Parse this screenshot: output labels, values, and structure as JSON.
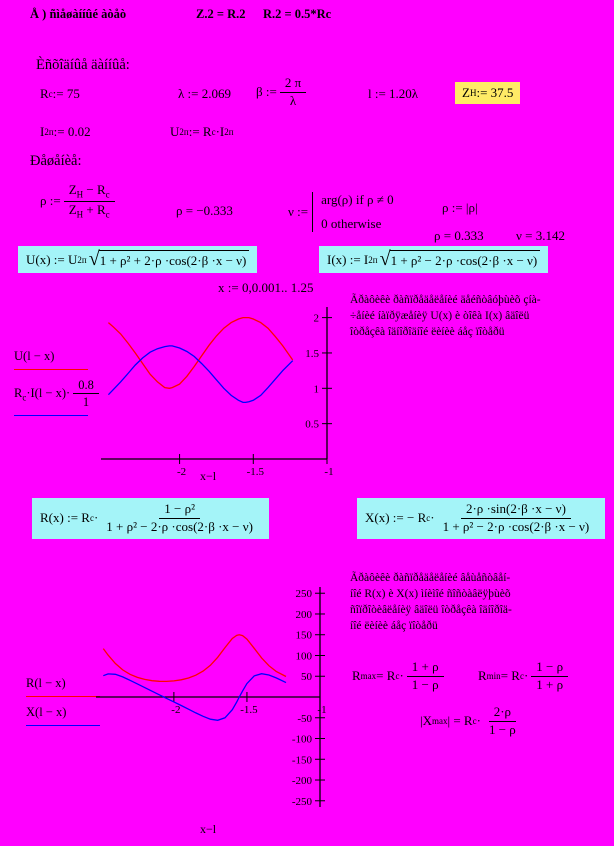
{
  "colors": {
    "background": "#FF00FF",
    "region_highlight": "#A4F4F8",
    "value_highlight": "#FFEB66",
    "trace_red": "#FF0000",
    "trace_blue": "#0000FF"
  },
  "header": {
    "label": "Å )  ñìåøàííûé àòåò",
    "eq1": "Z.2 = R.2",
    "eq2": "R.2 = 0.5*Rc"
  },
  "titles": {
    "given": "Èñõîäíûå äàííûå:",
    "solution": "Ðåøåíèå:"
  },
  "given": {
    "rc": [
      [
        "t",
        "R"
      ],
      [
        "b",
        "c"
      ],
      [
        "t",
        " := 75"
      ]
    ],
    "lambda": [
      [
        "t",
        "λ := 2.069"
      ]
    ],
    "beta": [
      [
        "t",
        "β := "
      ],
      [
        "F",
        [
          [
            "t",
            "2 π"
          ]
        ],
        [
          [
            "t",
            "λ"
          ]
        ]
      ]
    ],
    "length": [
      [
        "t",
        "l := 1.20λ"
      ]
    ],
    "zh": [
      [
        "t",
        "Z"
      ],
      [
        "b",
        "H"
      ],
      [
        "t",
        " := 37.5"
      ]
    ],
    "i2p": [
      [
        "t",
        "I"
      ],
      [
        "b",
        "2п"
      ],
      [
        "t",
        " := 0.02"
      ]
    ],
    "u2p": [
      [
        "t",
        "U"
      ],
      [
        "b",
        "2п"
      ],
      [
        "t",
        " := R"
      ],
      [
        "b",
        "c"
      ],
      [
        "t",
        "·I"
      ],
      [
        "b",
        "2п"
      ]
    ]
  },
  "solution": {
    "p_def": [
      [
        "t",
        "ρ := "
      ],
      [
        "F",
        [
          [
            "t",
            "Z"
          ],
          [
            "b",
            "H"
          ],
          [
            "t",
            " −  R"
          ],
          [
            "b",
            "c"
          ]
        ],
        [
          [
            "t",
            "Z"
          ],
          [
            "b",
            "H"
          ],
          [
            "t",
            " +  R"
          ],
          [
            "b",
            "c"
          ]
        ]
      ]
    ],
    "p_val1": "ρ  = −0.333",
    "v_label": [
      [
        "t",
        "ν := "
      ]
    ],
    "v_line1": "arg(ρ)   if  ρ ≠ 0",
    "v_line2": "0   otherwise",
    "p_abs": "ρ := |ρ|",
    "p_val2": "ρ  = 0.333",
    "v_val": "ν  = 3.142",
    "range": "x := 0,0.001.. 1.25"
  },
  "formulas": {
    "u_box": [
      [
        "t",
        "U(x) := U"
      ],
      [
        "b",
        "2п"
      ],
      [
        "r",
        "1 + ρ²  + 2·ρ ·cos(2·β ·x −  ν)"
      ]
    ],
    "i_box": [
      [
        "t",
        "I(x) := I"
      ],
      [
        "b",
        "2п"
      ],
      [
        "r",
        "1 + ρ²  −  2·ρ ·cos(2·β ·x −  ν)"
      ]
    ],
    "r_box": [
      [
        "t",
        "R(x) := R"
      ],
      [
        "b",
        "c"
      ],
      [
        "t",
        "·"
      ],
      [
        "F",
        [
          [
            "t",
            "1 −  ρ²"
          ]
        ],
        [
          [
            "t",
            "1 + ρ²  −  2·ρ ·cos(2·β ·x −  ν)"
          ]
        ]
      ]
    ],
    "x_box": [
      [
        "t",
        "X(x) := − R"
      ],
      [
        "b",
        "c"
      ],
      [
        "t",
        "·"
      ],
      [
        "F",
        [
          [
            "t",
            "2·ρ ·sin(2·β ·x −  ν)"
          ]
        ],
        [
          [
            "t",
            "1 + ρ²  −  2·ρ ·cos(2·β ·x −  ν)"
          ]
        ]
      ]
    ],
    "rmax": [
      [
        "t",
        "R"
      ],
      [
        "b",
        "max"
      ],
      [
        "t",
        " = R"
      ],
      [
        "b",
        "c"
      ],
      [
        "t",
        "·"
      ],
      [
        "F",
        [
          [
            "t",
            "1 +  ρ"
          ]
        ],
        [
          [
            "t",
            "1 −  ρ"
          ]
        ]
      ]
    ],
    "rmin": [
      [
        "t",
        "R"
      ],
      [
        "b",
        "min"
      ],
      [
        "t",
        " = R"
      ],
      [
        "b",
        "c"
      ],
      [
        "t",
        "·"
      ],
      [
        "F",
        [
          [
            "t",
            "1 −  ρ"
          ]
        ],
        [
          [
            "t",
            "1 +  ρ"
          ]
        ]
      ]
    ],
    "xmax": [
      [
        "t",
        "|X"
      ],
      [
        "b",
        "max"
      ],
      [
        "t",
        "| = R"
      ],
      [
        "b",
        "c"
      ],
      [
        "t",
        "·"
      ],
      [
        "F",
        [
          [
            "t",
            "2·ρ"
          ]
        ],
        [
          [
            "t",
            "1 −  ρ"
          ]
        ]
      ]
    ]
  },
  "notes": {
    "note1": {
      "lines": [
        "Ãðàôèêè ðàñïðåäåëåíèé äåéñòâóþùèõ çíà-",
        "÷åíèé íàïðÿæåíèÿ  U(x)  è  òîêà  I(x)  âäîëü",
        "îòðåçêà îäíîðîäíîé ëèíèè áåç ïîòåðü"
      ]
    },
    "note2": {
      "lines": [
        "Ãðàôèêè ðàñïðåäåëåíèé âåùåñòâåí-",
        "íîé  R(x) è  X(x) ìíèìîé ñîñòàâëÿþùèõ",
        "ñîïðîòèâëåíèÿ   âäîëü îòðåçêà îäíîðîä-",
        "íîé ëèíèè áåç ïîòåðü"
      ]
    }
  },
  "legends": {
    "plot1_line1": [
      [
        "t",
        "U(l −  x)"
      ]
    ],
    "plot1_line2": [
      [
        "t",
        "R"
      ],
      [
        "b",
        "c"
      ],
      [
        "t",
        "·I(l −  x)·"
      ],
      [
        "F",
        [
          [
            "t",
            "0.8"
          ]
        ],
        [
          [
            "t",
            "1"
          ]
        ]
      ]
    ],
    "plot2_line1": [
      [
        "t",
        "R(l −  x)"
      ]
    ],
    "plot2_line2": [
      [
        "t",
        "X(l −  x)"
      ]
    ]
  },
  "chart_data": [
    {
      "type": "line",
      "title": "",
      "xlabel": "x−l",
      "ylabel": "",
      "x": [
        -2.483,
        -2.45,
        -2.4,
        -2.35,
        -2.3,
        -2.25,
        -2.2,
        -2.15,
        -2.1,
        -2.069,
        -2.05,
        -2.0,
        -1.95,
        -1.9,
        -1.85,
        -1.8,
        -1.75,
        -1.7,
        -1.65,
        -1.6,
        -1.57,
        -1.552,
        -1.53,
        -1.5,
        -1.45,
        -1.4,
        -1.35,
        -1.3,
        -1.233
      ],
      "series": [
        {
          "name": "U(l-x)",
          "color": "#FF0000",
          "values": [
            1.93,
            1.87,
            1.77,
            1.64,
            1.5,
            1.35,
            1.2,
            1.09,
            1.01,
            1.0,
            1.01,
            1.06,
            1.17,
            1.31,
            1.46,
            1.61,
            1.74,
            1.85,
            1.93,
            1.98,
            2.0,
            2.0,
            2.0,
            1.98,
            1.93,
            1.85,
            1.73,
            1.6,
            1.4
          ]
        },
        {
          "name": "Rc·I(l-x)·(0.8/1)",
          "color": "#0000FF",
          "values": [
            0.91,
            0.98,
            1.09,
            1.21,
            1.33,
            1.43,
            1.51,
            1.56,
            1.59,
            1.6,
            1.6,
            1.57,
            1.52,
            1.45,
            1.35,
            1.24,
            1.12,
            1.0,
            0.9,
            0.83,
            0.8,
            0.8,
            0.81,
            0.83,
            0.9,
            1.01,
            1.13,
            1.25,
            1.39
          ]
        }
      ],
      "xlim": [
        -2.533,
        -1.0
      ],
      "ylim": [
        0,
        2.15
      ],
      "x_ticks": [
        -2,
        -1.5,
        -1
      ],
      "y_ticks": [
        0.5,
        1,
        1.5,
        2
      ],
      "axis_side": "right",
      "grid": false
    },
    {
      "type": "line",
      "title": "",
      "xlabel": "x−l",
      "ylabel": "",
      "x": [
        -2.483,
        -2.45,
        -2.4,
        -2.35,
        -2.3,
        -2.25,
        -2.2,
        -2.15,
        -2.1,
        -2.069,
        -2.05,
        -2.0,
        -1.95,
        -1.9,
        -1.85,
        -1.8,
        -1.75,
        -1.7,
        -1.65,
        -1.6,
        -1.57,
        -1.552,
        -1.53,
        -1.5,
        -1.45,
        -1.4,
        -1.35,
        -1.3,
        -1.233
      ],
      "series": [
        {
          "name": "R(l-x)",
          "color": "#FF0000",
          "values": [
            116.5,
            101.0,
            80.6,
            65.3,
            54.6,
            47.2,
            42.3,
            39.3,
            37.8,
            37.5,
            37.6,
            38.8,
            41.4,
            45.8,
            52.6,
            62.4,
            76.4,
            95.7,
            119.1,
            140.9,
            148.5,
            149.9,
            147.9,
            139.6,
            117.4,
            94.2,
            75.4,
            61.6,
            49.4
          ]
        },
        {
          "name": "X(l-x)",
          "color": "#0000FF",
          "values": [
            51.3,
            55.7,
            54.6,
            48.5,
            40.3,
            31.5,
            22.6,
            13.9,
            5.3,
            0.0,
            -3.3,
            -11.8,
            -20.5,
            -29.4,
            -38.3,
            -46.6,
            -53.5,
            -56.1,
            -50.1,
            -30.5,
            -12.3,
            0.0,
            14.6,
            32.4,
            50.9,
            56.2,
            53.1,
            46.1,
            34.6
          ]
        }
      ],
      "xlim": [
        -2.533,
        -1.0
      ],
      "ylim": [
        -265,
        265
      ],
      "x_ticks": [
        -2,
        -1.5,
        -1
      ],
      "y_ticks": [
        -250,
        -200,
        -150,
        -100,
        -50,
        50,
        100,
        150,
        200,
        250
      ],
      "axis_side": "right",
      "grid": false
    }
  ]
}
